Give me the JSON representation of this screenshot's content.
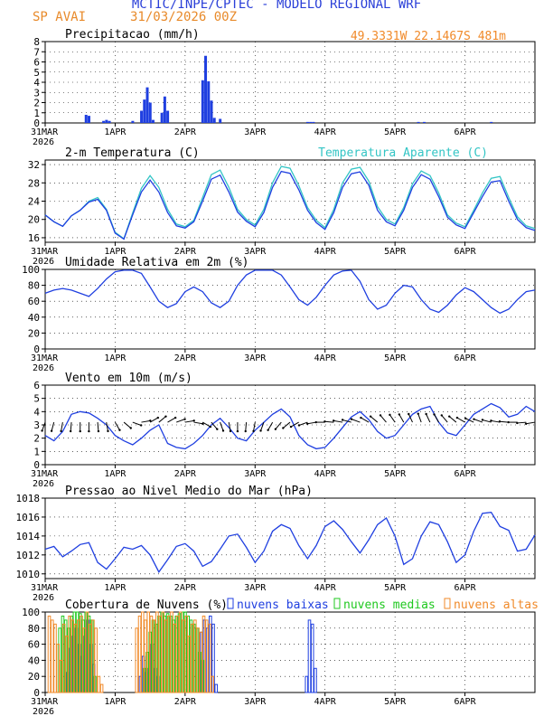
{
  "header": {
    "title": "MCTIC/INPE/CPTEC - MODELO REGIONAL WRF",
    "station": "SP AVAI",
    "date": "31/03/2026 00Z",
    "coords": "49.3331W 22.1467S 481m"
  },
  "colors": {
    "blue": "#1f3fe0",
    "cyan": "#33c5c5",
    "green": "#1fc81f",
    "orange": "#f08a2a",
    "black": "#000000",
    "title_blue": "#2a3fd8"
  },
  "time_axis": {
    "labels": [
      "31MAR",
      "1APR",
      "2APR",
      "3APR",
      "4APR",
      "5APR",
      "6APR"
    ],
    "year": "2026",
    "range_hours": [
      0,
      168
    ]
  },
  "chart_data": [
    {
      "type": "bar",
      "title": "Precipitacao (mm/h)",
      "ylim": [
        0,
        8
      ],
      "yticks": [
        0,
        1,
        2,
        3,
        4,
        5,
        6,
        7,
        8
      ],
      "x_hours": [
        14,
        15,
        20,
        21,
        22,
        30,
        33,
        34,
        35,
        36,
        37,
        40,
        41,
        42,
        54,
        55,
        56,
        57,
        58,
        60,
        90,
        91,
        92,
        128,
        130,
        153
      ],
      "values": [
        0.8,
        0.7,
        0.2,
        0.3,
        0.2,
        0.2,
        1.2,
        2.3,
        3.5,
        2.0,
        0.3,
        1.0,
        2.6,
        1.2,
        4.2,
        6.6,
        4.1,
        2.2,
        0.5,
        0.4,
        0.1,
        0.1,
        0.1,
        0.1,
        0.1,
        0.1
      ]
    },
    {
      "type": "line",
      "title": "2-m Temperatura (C)",
      "ylim": [
        15,
        33
      ],
      "yticks": [
        16,
        20,
        24,
        28,
        32
      ],
      "legend": [
        "2-m Temperatura (C)",
        "Temperatura Aparente (C)"
      ],
      "x_hours": [
        0,
        3,
        6,
        9,
        12,
        15,
        18,
        21,
        24,
        27,
        30,
        33,
        36,
        39,
        42,
        45,
        48,
        51,
        54,
        57,
        60,
        63,
        66,
        69,
        72,
        75,
        78,
        81,
        84,
        87,
        90,
        93,
        96,
        99,
        102,
        105,
        108,
        111,
        114,
        117,
        120,
        123,
        126,
        129,
        132,
        135,
        138,
        141,
        144,
        147,
        150,
        153,
        156,
        159,
        162,
        165,
        168
      ],
      "series": [
        {
          "name": "Temperatura 2m",
          "values": [
            21.0,
            19.5,
            18.5,
            20.8,
            22.0,
            23.8,
            24.4,
            22.0,
            17.0,
            15.7,
            21.0,
            26.0,
            28.6,
            26.0,
            21.5,
            18.6,
            18.1,
            19.5,
            24.0,
            28.8,
            29.7,
            26.0,
            21.6,
            19.6,
            18.4,
            21.5,
            27.0,
            30.5,
            30.1,
            26.5,
            22.0,
            19.3,
            17.8,
            21.5,
            27.0,
            30.0,
            30.4,
            27.5,
            22.0,
            19.5,
            18.6,
            22.0,
            27.0,
            29.8,
            28.8,
            25.0,
            20.5,
            18.8,
            18.0,
            21.5,
            25.0,
            28.2,
            28.5,
            24.0,
            20.0,
            18.2,
            17.6
          ]
        },
        {
          "name": "Temperatura Aparente",
          "values": [
            21.0,
            19.5,
            18.5,
            20.8,
            22.0,
            24.0,
            24.8,
            22.2,
            17.2,
            15.8,
            21.4,
            26.8,
            29.6,
            27.0,
            22.2,
            19.0,
            18.4,
            19.8,
            24.8,
            29.8,
            30.8,
            27.0,
            22.2,
            20.0,
            18.8,
            22.2,
            28.0,
            31.6,
            31.2,
            27.4,
            22.6,
            19.8,
            18.2,
            22.2,
            28.0,
            31.0,
            31.4,
            28.4,
            22.8,
            20.0,
            19.0,
            22.6,
            27.8,
            30.6,
            29.6,
            25.8,
            21.0,
            19.2,
            18.4,
            22.0,
            25.8,
            29.0,
            29.4,
            24.8,
            20.6,
            18.6,
            18.0
          ]
        }
      ]
    },
    {
      "type": "line",
      "title": "Umidade Relativa em 2m (%)",
      "ylim": [
        0,
        100
      ],
      "yticks": [
        0,
        20,
        40,
        60,
        80,
        100
      ],
      "x_hours": [
        0,
        3,
        6,
        9,
        12,
        15,
        18,
        21,
        24,
        27,
        30,
        33,
        36,
        39,
        42,
        45,
        48,
        51,
        54,
        57,
        60,
        63,
        66,
        69,
        72,
        75,
        78,
        81,
        84,
        87,
        90,
        93,
        96,
        99,
        102,
        105,
        108,
        111,
        114,
        117,
        120,
        123,
        126,
        129,
        132,
        135,
        138,
        141,
        144,
        147,
        150,
        153,
        156,
        159,
        162,
        165,
        168
      ],
      "series": [
        {
          "name": "Umidade Relativa",
          "values": [
            70,
            74,
            76,
            74,
            70,
            66,
            76,
            88,
            97,
            99,
            99,
            95,
            78,
            60,
            52,
            57,
            72,
            78,
            72,
            58,
            52,
            60,
            80,
            93,
            99,
            99,
            99,
            93,
            78,
            62,
            55,
            65,
            80,
            93,
            98,
            99,
            85,
            62,
            50,
            55,
            70,
            80,
            78,
            62,
            50,
            46,
            55,
            68,
            77,
            72,
            62,
            52,
            45,
            50,
            62,
            72,
            74
          ]
        }
      ]
    },
    {
      "type": "line",
      "title": "Vento em 10m (m/s)",
      "ylim": [
        0,
        6
      ],
      "yticks": [
        0,
        1,
        2,
        3,
        4,
        5,
        6
      ],
      "x_hours": [
        0,
        3,
        6,
        9,
        12,
        15,
        18,
        21,
        24,
        27,
        30,
        33,
        36,
        39,
        42,
        45,
        48,
        51,
        54,
        57,
        60,
        63,
        66,
        69,
        72,
        75,
        78,
        81,
        84,
        87,
        90,
        93,
        96,
        99,
        102,
        105,
        108,
        111,
        114,
        117,
        120,
        123,
        126,
        129,
        132,
        135,
        138,
        141,
        144,
        147,
        150,
        153,
        156,
        159,
        162,
        165,
        168
      ],
      "series": [
        {
          "name": "Vento 10m",
          "values": [
            2.2,
            1.8,
            2.5,
            3.8,
            4.0,
            3.9,
            3.5,
            3.0,
            2.2,
            1.8,
            1.5,
            2.0,
            2.6,
            3.0,
            1.6,
            1.3,
            1.2,
            1.6,
            2.2,
            3.0,
            3.5,
            2.8,
            2.0,
            1.8,
            2.6,
            3.2,
            3.8,
            4.2,
            3.6,
            2.2,
            1.5,
            1.2,
            1.3,
            2.0,
            2.8,
            3.6,
            4.0,
            3.4,
            2.5,
            2.0,
            2.2,
            3.0,
            3.8,
            4.2,
            4.4,
            3.2,
            2.4,
            2.2,
            3.0,
            3.8,
            4.2,
            4.6,
            4.3,
            3.6,
            3.8,
            4.4,
            4.0
          ]
        }
      ],
      "wind_directions_deg": [
        250,
        255,
        260,
        265,
        270,
        270,
        275,
        280,
        300,
        320,
        340,
        10,
        30,
        40,
        30,
        20,
        10,
        350,
        330,
        310,
        290,
        280,
        270,
        265,
        260,
        250,
        240,
        230,
        220,
        210,
        200,
        190,
        180,
        175,
        170,
        165,
        160,
        150,
        140,
        130,
        125,
        120,
        115,
        110,
        115,
        120,
        130,
        140,
        150,
        155,
        160,
        165,
        170,
        175,
        180,
        185,
        190
      ]
    },
    {
      "type": "line",
      "title": "Pressao ao Nivel Medio do Mar (hPa)",
      "ylim": [
        1009.5,
        1018
      ],
      "yticks": [
        1010,
        1012,
        1014,
        1016,
        1018
      ],
      "x_hours": [
        0,
        3,
        6,
        9,
        12,
        15,
        18,
        21,
        24,
        27,
        30,
        33,
        36,
        39,
        42,
        45,
        48,
        51,
        54,
        57,
        60,
        63,
        66,
        69,
        72,
        75,
        78,
        81,
        84,
        87,
        90,
        93,
        96,
        99,
        102,
        105,
        108,
        111,
        114,
        117,
        120,
        123,
        126,
        129,
        132,
        135,
        138,
        141,
        144,
        147,
        150,
        153,
        156,
        159,
        162,
        165,
        168
      ],
      "series": [
        {
          "name": "Pressao NMM",
          "values": [
            1012.6,
            1012.9,
            1011.8,
            1012.4,
            1013.1,
            1013.3,
            1011.2,
            1010.5,
            1011.6,
            1012.8,
            1012.6,
            1013.0,
            1012.0,
            1010.2,
            1011.5,
            1012.9,
            1013.2,
            1012.4,
            1010.8,
            1011.3,
            1012.6,
            1014.0,
            1014.2,
            1012.8,
            1011.2,
            1012.4,
            1014.5,
            1015.2,
            1014.8,
            1013.0,
            1011.6,
            1013.0,
            1015.0,
            1015.6,
            1014.7,
            1013.4,
            1012.2,
            1013.6,
            1015.2,
            1015.9,
            1014.0,
            1011.0,
            1011.6,
            1014.0,
            1015.5,
            1015.2,
            1013.4,
            1011.2,
            1012.0,
            1014.5,
            1016.4,
            1016.5,
            1015.0,
            1014.6,
            1012.4,
            1012.6,
            1014.1
          ]
        }
      ]
    },
    {
      "type": "bar",
      "title": "Cobertura de Nuvens (%)",
      "ylim": [
        0,
        100
      ],
      "yticks": [
        0,
        20,
        40,
        60,
        80,
        100
      ],
      "legend": [
        "nuvens baixas",
        "nuvens medias",
        "nuvens altas"
      ],
      "x_hours": [
        1,
        2,
        3,
        4,
        5,
        6,
        7,
        8,
        9,
        10,
        11,
        12,
        13,
        14,
        15,
        16,
        17,
        18,
        19,
        20,
        21,
        22,
        23,
        24,
        25,
        26,
        27,
        28,
        29,
        30,
        31,
        32,
        33,
        34,
        35,
        36,
        37,
        38,
        39,
        40,
        41,
        42,
        43,
        44,
        45,
        46,
        47,
        48,
        49,
        50,
        51,
        52,
        53,
        54,
        55,
        56,
        57,
        58,
        59,
        60,
        61,
        62,
        63,
        64,
        65,
        66,
        67,
        68,
        69,
        70,
        71,
        72,
        73,
        74,
        75,
        76,
        77,
        78,
        79,
        80,
        81,
        82,
        83,
        84,
        85,
        86,
        87,
        88,
        89,
        90,
        91,
        92,
        93,
        94,
        95,
        96,
        97
      ],
      "series": [
        {
          "name": "nuvens baixas",
          "values": [
            0,
            0,
            0,
            0,
            0,
            0,
            0,
            25,
            55,
            70,
            80,
            60,
            45,
            70,
            90,
            60,
            35,
            0,
            0,
            0,
            0,
            0,
            0,
            0,
            0,
            0,
            0,
            0,
            0,
            0,
            0,
            0,
            20,
            45,
            25,
            30,
            60,
            30,
            20,
            0,
            0,
            0,
            0,
            0,
            0,
            0,
            0,
            0,
            0,
            0,
            0,
            0,
            0,
            75,
            90,
            80,
            95,
            85,
            10,
            0,
            0,
            0,
            0,
            0,
            0,
            0,
            0,
            0,
            0,
            0,
            0,
            0,
            0,
            0,
            0,
            0,
            0,
            0,
            0,
            0,
            0,
            0,
            0,
            0,
            0,
            0,
            0,
            0,
            0,
            20,
            90,
            85,
            30,
            0,
            0,
            0,
            0
          ]
        },
        {
          "name": "nuvens medias",
          "values": [
            0,
            0,
            0,
            0,
            80,
            95,
            90,
            80,
            95,
            100,
            100,
            98,
            90,
            100,
            95,
            90,
            20,
            0,
            0,
            0,
            0,
            0,
            0,
            0,
            0,
            0,
            0,
            0,
            0,
            0,
            0,
            0,
            0,
            30,
            50,
            75,
            90,
            85,
            95,
            100,
            95,
            98,
            95,
            90,
            95,
            98,
            100,
            100,
            95,
            90,
            85,
            80,
            50,
            40,
            0,
            0,
            0,
            0,
            0,
            0,
            0,
            0,
            0,
            0,
            0,
            0,
            0,
            0,
            0,
            0,
            0,
            0,
            0,
            0,
            0,
            0,
            0,
            0,
            0,
            0,
            0,
            0,
            0,
            0,
            0,
            0,
            0,
            0,
            0,
            0,
            0,
            0,
            0,
            0,
            0,
            0,
            0
          ]
        },
        {
          "name": "nuvens altas",
          "values": [
            95,
            90,
            85,
            60,
            40,
            85,
            70,
            95,
            90,
            85,
            90,
            95,
            80,
            100,
            85,
            90,
            80,
            20,
            10,
            0,
            0,
            0,
            0,
            0,
            0,
            0,
            0,
            0,
            0,
            0,
            80,
            95,
            100,
            90,
            100,
            95,
            90,
            100,
            95,
            100,
            90,
            95,
            100,
            85,
            95,
            100,
            90,
            95,
            70,
            85,
            90,
            80,
            75,
            95,
            90,
            85,
            20,
            0,
            0,
            0,
            0,
            0,
            0,
            0,
            0,
            0,
            0,
            0,
            0,
            0,
            0,
            0,
            0,
            0,
            0,
            0,
            0,
            0,
            0,
            0,
            0,
            0,
            0,
            0,
            0,
            0,
            0,
            0,
            0,
            0,
            0,
            0,
            0,
            0,
            0,
            0,
            0
          ]
        }
      ]
    }
  ]
}
